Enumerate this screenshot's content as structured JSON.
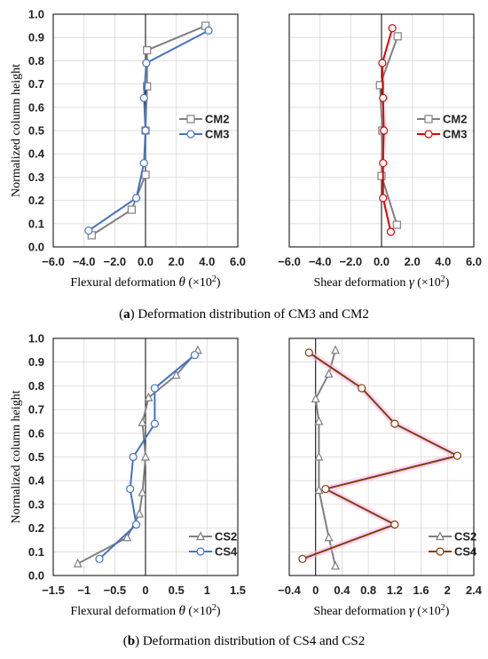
{
  "captions": {
    "a_letter": "a",
    "a_text": " Deformation distribution of CM3 and CM2",
    "b_letter": "b",
    "b_text": " Deformation distribution of CS4 and CS2"
  },
  "colors": {
    "grid": "#d9d9d9",
    "gray_series": "#7f7f7f",
    "blue_series": "#4472c4",
    "red_series": "#e00000",
    "brown_series": "#843c0c",
    "pink_glow": "#f2b6e8"
  },
  "chart_data": [
    {
      "id": "a-left",
      "type": "line",
      "ylabel": "Normalized column height",
      "xlabel_prefix": "Flexural deformation ",
      "symbol": "θ",
      "xlabel_suffix": " (×10",
      "exponent": "2",
      "close": ")",
      "xlim": [
        -6,
        6
      ],
      "ylim": [
        0,
        1
      ],
      "xticks": [
        "−6.0",
        "−4.0",
        "−2.0",
        "0.0",
        "2.0",
        "4.0",
        "6.0"
      ],
      "yticks": [
        "0.0",
        "0.1",
        "0.2",
        "0.3",
        "0.4",
        "0.5",
        "0.6",
        "0.7",
        "0.8",
        "0.9",
        "1.0"
      ],
      "legend_position": "right",
      "series": [
        {
          "name": "CM2",
          "marker": "square",
          "color": "#7f7f7f",
          "points": [
            [
              -3.5,
              0.05
            ],
            [
              -0.9,
              0.16
            ],
            [
              0.0,
              0.31
            ],
            [
              0.0,
              0.5
            ],
            [
              0.1,
              0.69
            ],
            [
              0.1,
              0.845
            ],
            [
              3.9,
              0.95
            ]
          ]
        },
        {
          "name": "CM3",
          "marker": "circle",
          "color": "#4472c4",
          "points": [
            [
              -3.7,
              0.07
            ],
            [
              -0.6,
              0.21
            ],
            [
              -0.1,
              0.36
            ],
            [
              0.0,
              0.5
            ],
            [
              -0.1,
              0.64
            ],
            [
              0.05,
              0.79
            ],
            [
              4.1,
              0.93
            ]
          ]
        }
      ]
    },
    {
      "id": "a-right",
      "type": "line",
      "xlabel_prefix": "Shear deformation ",
      "symbol": "γ",
      "xlabel_suffix": " (×10",
      "exponent": "2",
      "close": ")",
      "xlim": [
        -6,
        6
      ],
      "ylim": [
        0,
        1
      ],
      "xticks": [
        "−6.0",
        "−4.0",
        "−2.0",
        "0.0",
        "2.0",
        "4.0",
        "6.0"
      ],
      "legend_position": "right",
      "series": [
        {
          "name": "CM2",
          "marker": "square",
          "color": "#7f7f7f",
          "points": [
            [
              1.0,
              0.095
            ],
            [
              0.0,
              0.305
            ],
            [
              0.05,
              0.5
            ],
            [
              -0.1,
              0.695
            ],
            [
              1.05,
              0.905
            ]
          ]
        },
        {
          "name": "CM3",
          "marker": "circle",
          "color": "#e00000",
          "points": [
            [
              0.6,
              0.065
            ],
            [
              0.1,
              0.21
            ],
            [
              0.1,
              0.36
            ],
            [
              0.15,
              0.5
            ],
            [
              0.1,
              0.64
            ],
            [
              0.05,
              0.79
            ],
            [
              0.7,
              0.94
            ]
          ]
        }
      ]
    },
    {
      "id": "b-left",
      "type": "line",
      "ylabel": "Normalized column height",
      "xlabel_prefix": "Flexural deformation ",
      "symbol": "θ",
      "xlabel_suffix": " (×10",
      "exponent": "2",
      "close": ")",
      "xlim": [
        -1.5,
        1.5
      ],
      "ylim": [
        0,
        1
      ],
      "xticks": [
        "−1.5",
        "−1",
        "−0.5",
        "0",
        "0.5",
        "1",
        "1.5"
      ],
      "yticks": [
        "0.0",
        "0.1",
        "0.2",
        "0.3",
        "0.4",
        "0.5",
        "0.6",
        "0.7",
        "0.8",
        "0.9",
        "1.0"
      ],
      "legend_position": "bottom-right",
      "series": [
        {
          "name": "CS2",
          "marker": "triangle",
          "color": "#7f7f7f",
          "points": [
            [
              -1.1,
              0.05
            ],
            [
              -0.3,
              0.16
            ],
            [
              -0.1,
              0.26
            ],
            [
              -0.05,
              0.35
            ],
            [
              0.0,
              0.5
            ],
            [
              -0.05,
              0.645
            ],
            [
              0.05,
              0.75
            ],
            [
              0.5,
              0.845
            ],
            [
              0.85,
              0.95
            ]
          ]
        },
        {
          "name": "CS4",
          "marker": "circle",
          "color": "#4472c4",
          "points": [
            [
              -0.75,
              0.07
            ],
            [
              -0.15,
              0.215
            ],
            [
              -0.25,
              0.365
            ],
            [
              -0.2,
              0.5
            ],
            [
              0.15,
              0.64
            ],
            [
              0.15,
              0.79
            ],
            [
              0.8,
              0.93
            ]
          ]
        }
      ]
    },
    {
      "id": "b-right",
      "type": "line",
      "xlabel_prefix": "Shear deformation ",
      "symbol": "γ",
      "xlabel_suffix": " (×10",
      "exponent": "2",
      "close": ")",
      "xlim": [
        -0.4,
        2.4
      ],
      "ylim": [
        0,
        1
      ],
      "xticks": [
        "−0.4",
        "0",
        "0.4",
        "0.8",
        "1.2",
        "1.6",
        "2",
        "2.4"
      ],
      "legend_position": "bottom-right",
      "series": [
        {
          "name": "CS2",
          "marker": "triangle",
          "color": "#7f7f7f",
          "points": [
            [
              0.3,
              0.04
            ],
            [
              0.2,
              0.16
            ],
            [
              0.05,
              0.36
            ],
            [
              0.05,
              0.5
            ],
            [
              0.05,
              0.65
            ],
            [
              0.0,
              0.745
            ],
            [
              0.2,
              0.85
            ],
            [
              0.3,
              0.95
            ]
          ]
        },
        {
          "name": "CS4",
          "marker": "circle",
          "color": "#843c0c",
          "points": [
            [
              -0.2,
              0.07
            ],
            [
              1.2,
              0.215
            ],
            [
              0.15,
              0.365
            ],
            [
              2.15,
              0.505
            ],
            [
              1.2,
              0.64
            ],
            [
              0.7,
              0.79
            ],
            [
              -0.1,
              0.94
            ]
          ]
        }
      ]
    }
  ]
}
